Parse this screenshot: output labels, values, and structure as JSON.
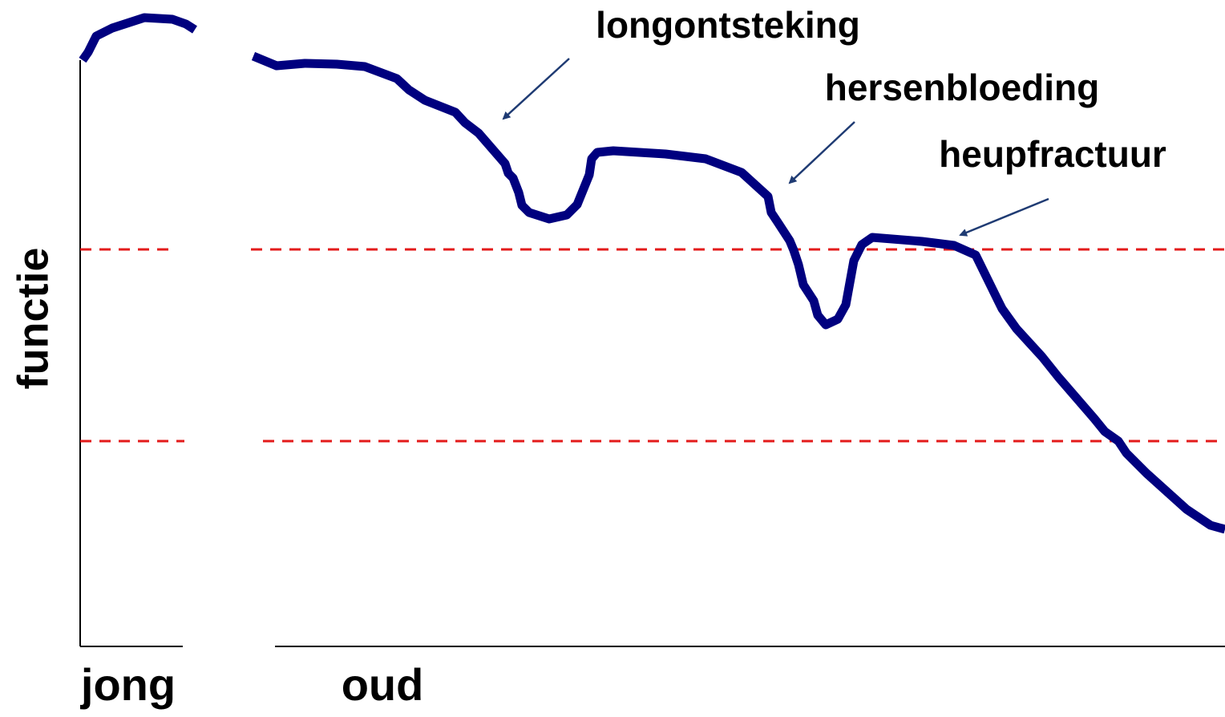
{
  "axis_labels": {
    "y": "functie",
    "x_start": "jong",
    "x_end": "oud"
  },
  "annotations": [
    "longontsteking",
    "hersenbloeding",
    "heupfractuur"
  ]
}
